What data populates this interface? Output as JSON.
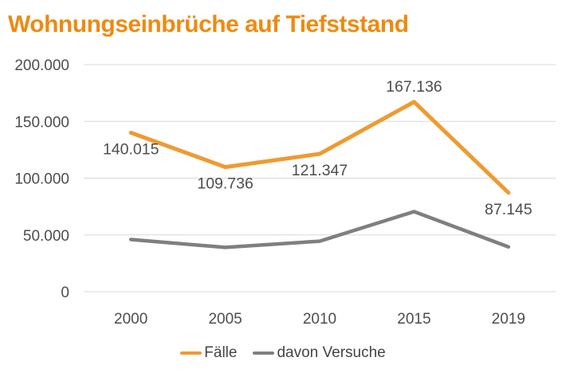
{
  "page": {
    "background": "#FFFFFF"
  },
  "chart_data": {
    "type": "line",
    "title": "Wohnungseinbrüche auf Tiefststand",
    "title_color": "#EE8A11",
    "text_color": "#4D4D4D",
    "grid_color": "#D9D9D9",
    "grid": true,
    "legend_position": "bottom",
    "categories": [
      "2000",
      "2005",
      "2010",
      "2015",
      "2019"
    ],
    "series": [
      {
        "name": "Fälle",
        "color": "#EE9B30",
        "stroke_width": 5,
        "values": [
          140015,
          109736,
          121347,
          167136,
          87145
        ],
        "data_labels": [
          "140.015",
          "109.736",
          "121.347",
          "167.136",
          "87.145"
        ],
        "label_positions": [
          "below",
          "below",
          "below",
          "above",
          "below"
        ]
      },
      {
        "name": "davon Versuche",
        "color": "#7F7F7F",
        "stroke_width": 4.5,
        "values": [
          46000,
          39000,
          44500,
          70500,
          39500
        ],
        "data_labels": [],
        "label_positions": []
      }
    ],
    "y_axis": {
      "min": 0,
      "max": 200000,
      "ticks": [
        {
          "value": 200000,
          "label": "200.000"
        },
        {
          "value": 150000,
          "label": "150.000"
        },
        {
          "value": 100000,
          "label": "100.000"
        },
        {
          "value": 50000,
          "label": "50.000"
        },
        {
          "value": 0,
          "label": "0"
        }
      ]
    }
  }
}
